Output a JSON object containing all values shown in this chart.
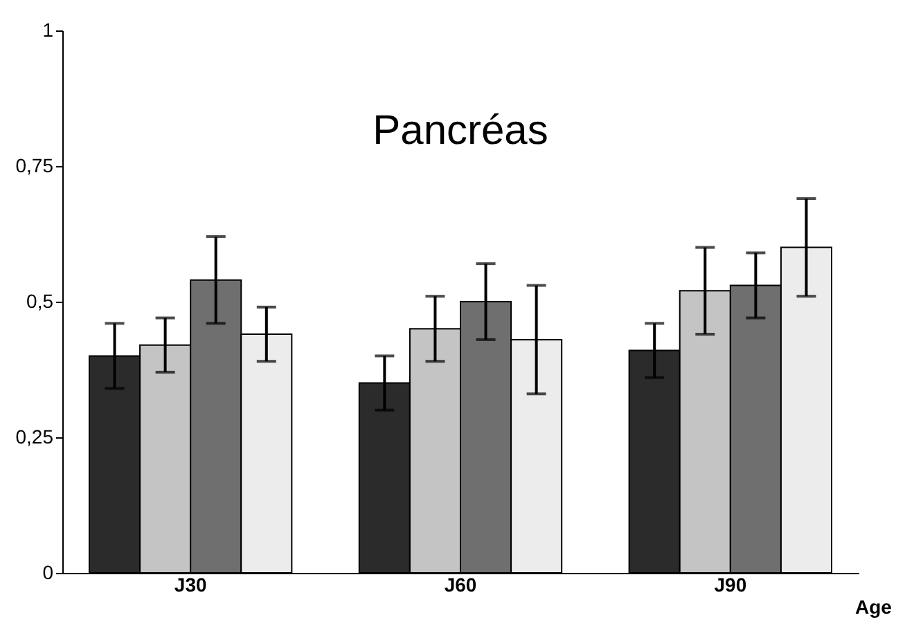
{
  "chart_data": {
    "type": "bar",
    "title": "Pancréas",
    "xlabel": "Age",
    "categories": [
      "J30",
      "J60",
      "J90"
    ],
    "series": [
      {
        "color": "#2b2b2b",
        "values": [
          0.4,
          0.35,
          0.41
        ],
        "errors": [
          0.06,
          0.05,
          0.05
        ]
      },
      {
        "color": "#c4c4c4",
        "values": [
          0.42,
          0.45,
          0.52
        ],
        "errors": [
          0.05,
          0.06,
          0.08
        ]
      },
      {
        "color": "#6f6f6f",
        "values": [
          0.54,
          0.5,
          0.53
        ],
        "errors": [
          0.08,
          0.07,
          0.06
        ]
      },
      {
        "color": "#ececec",
        "values": [
          0.44,
          0.43,
          0.6
        ],
        "errors": [
          0.05,
          0.1,
          0.09
        ]
      }
    ],
    "ylim": [
      0,
      1
    ],
    "yticks": [
      0,
      {
        "value": 0.25,
        "label": "0,25"
      },
      {
        "value": 0.5,
        "label": "0,5"
      },
      {
        "value": 0.75,
        "label": "0,75"
      },
      1
    ],
    "grid": false,
    "legend": false
  }
}
